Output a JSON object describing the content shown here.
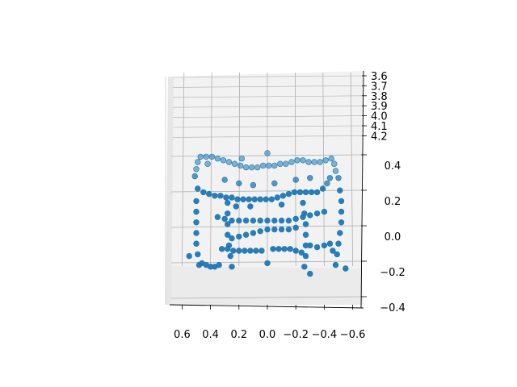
{
  "chart_data": {
    "type": "scatter",
    "projection": "3d",
    "title": "",
    "xlabel": "",
    "ylabel": "",
    "zlabel": "",
    "grid": true,
    "marker_color": "#1f77b4",
    "pane_color": "#f2f2f2",
    "grid_color": "#b0b0b0",
    "x_axis": {
      "ticks": [
        0.6,
        0.4,
        0.2,
        0.0,
        -0.2,
        -0.4,
        -0.6
      ],
      "tick_labels": [
        "0.6",
        "0.4",
        "0.2",
        "0.0",
        "−0.2",
        "−0.4",
        "−0.6"
      ]
    },
    "y_axis": {
      "ticks": [
        0.4,
        0.2,
        0.0,
        -0.2,
        -0.4
      ],
      "tick_labels": [
        "0.4",
        "0.2",
        "0.0",
        "−0.2",
        "−0.4"
      ]
    },
    "z_axis": {
      "ticks": [
        3.6,
        3.7,
        3.8,
        3.9,
        4.0,
        4.1,
        4.2
      ],
      "tick_labels": [
        "3.6",
        "3.7",
        "3.8",
        "3.9",
        "4.0",
        "4.1",
        "4.2"
      ]
    },
    "series": [
      {
        "points": [
          {
            "x": 0.47,
            "y": 0.48,
            "z": 4.15
          },
          {
            "x": 0.43,
            "y": 0.48,
            "z": 4.15
          },
          {
            "x": 0.39,
            "y": 0.48,
            "z": 4.15
          },
          {
            "x": 0.35,
            "y": 0.47,
            "z": 4.15
          },
          {
            "x": 0.31,
            "y": 0.46,
            "z": 4.15
          },
          {
            "x": 0.27,
            "y": 0.45,
            "z": 4.15
          },
          {
            "x": 0.23,
            "y": 0.44,
            "z": 4.15
          },
          {
            "x": 0.19,
            "y": 0.43,
            "z": 4.15
          },
          {
            "x": 0.15,
            "y": 0.42,
            "z": 4.15
          },
          {
            "x": 0.11,
            "y": 0.42,
            "z": 4.15
          },
          {
            "x": 0.07,
            "y": 0.42,
            "z": 4.15
          },
          {
            "x": 0.03,
            "y": 0.43,
            "z": 4.15
          },
          {
            "x": -0.01,
            "y": 0.43,
            "z": 4.15
          },
          {
            "x": -0.05,
            "y": 0.43,
            "z": 4.15
          },
          {
            "x": -0.09,
            "y": 0.44,
            "z": 4.15
          },
          {
            "x": -0.13,
            "y": 0.44,
            "z": 4.15
          },
          {
            "x": -0.17,
            "y": 0.45,
            "z": 4.15
          },
          {
            "x": -0.21,
            "y": 0.46,
            "z": 4.15
          },
          {
            "x": -0.25,
            "y": 0.46,
            "z": 4.15
          },
          {
            "x": -0.29,
            "y": 0.45,
            "z": 4.15
          },
          {
            "x": -0.33,
            "y": 0.45,
            "z": 4.15
          },
          {
            "x": -0.37,
            "y": 0.45,
            "z": 4.15
          },
          {
            "x": -0.41,
            "y": 0.46,
            "z": 4.15
          },
          {
            "x": -0.45,
            "y": 0.47,
            "z": 4.15
          },
          {
            "x": 0.49,
            "y": 0.45,
            "z": 4.15
          },
          {
            "x": 0.5,
            "y": 0.41,
            "z": 4.15
          },
          {
            "x": 0.51,
            "y": 0.37,
            "z": 4.15
          },
          {
            "x": -0.47,
            "y": 0.44,
            "z": 4.15
          },
          {
            "x": -0.48,
            "y": 0.4,
            "z": 4.15
          },
          {
            "x": -0.5,
            "y": 0.36,
            "z": 4.15
          },
          {
            "x": 0.42,
            "y": 0.44,
            "z": 4.15
          },
          {
            "x": 0.18,
            "y": 0.47,
            "z": 4.15
          },
          {
            "x": 0.0,
            "y": 0.5,
            "z": 4.15
          },
          {
            "x": 0.45,
            "y": 0.28,
            "z": 4.15
          },
          {
            "x": 0.41,
            "y": 0.27,
            "z": 4.15
          },
          {
            "x": 0.37,
            "y": 0.26,
            "z": 4.15
          },
          {
            "x": 0.33,
            "y": 0.26,
            "z": 4.15
          },
          {
            "x": 0.29,
            "y": 0.25,
            "z": 4.15
          },
          {
            "x": 0.25,
            "y": 0.25,
            "z": 4.15
          },
          {
            "x": 0.21,
            "y": 0.24,
            "z": 4.15
          },
          {
            "x": 0.17,
            "y": 0.24,
            "z": 4.15
          },
          {
            "x": 0.13,
            "y": 0.24,
            "z": 4.15
          },
          {
            "x": 0.09,
            "y": 0.24,
            "z": 4.15
          },
          {
            "x": 0.05,
            "y": 0.24,
            "z": 4.15
          },
          {
            "x": 0.01,
            "y": 0.24,
            "z": 4.15
          },
          {
            "x": -0.03,
            "y": 0.24,
            "z": 4.15
          },
          {
            "x": -0.07,
            "y": 0.25,
            "z": 4.15
          },
          {
            "x": -0.11,
            "y": 0.26,
            "z": 4.15
          },
          {
            "x": -0.15,
            "y": 0.27,
            "z": 4.15
          },
          {
            "x": -0.19,
            "y": 0.28,
            "z": 4.15
          },
          {
            "x": -0.23,
            "y": 0.28,
            "z": 4.15
          },
          {
            "x": -0.27,
            "y": 0.28,
            "z": 4.15
          },
          {
            "x": -0.31,
            "y": 0.28,
            "z": 4.15
          },
          {
            "x": -0.35,
            "y": 0.28,
            "z": 4.15
          },
          {
            "x": -0.39,
            "y": 0.3,
            "z": 4.15
          },
          {
            "x": -0.42,
            "y": 0.33,
            "z": 4.15
          },
          {
            "x": -0.44,
            "y": 0.36,
            "z": 4.15
          },
          {
            "x": 0.3,
            "y": 0.35,
            "z": 4.15
          },
          {
            "x": 0.2,
            "y": 0.33,
            "z": 4.15
          },
          {
            "x": 0.1,
            "y": 0.32,
            "z": 4.15
          },
          {
            "x": -0.05,
            "y": 0.33,
            "z": 4.15
          },
          {
            "x": -0.2,
            "y": 0.35,
            "z": 4.15
          },
          {
            "x": -0.3,
            "y": 0.36,
            "z": 4.15
          },
          {
            "x": 0.28,
            "y": 0.22,
            "z": 4.15
          },
          {
            "x": 0.22,
            "y": 0.2,
            "z": 4.15
          },
          {
            "x": 0.12,
            "y": 0.2,
            "z": 4.15
          },
          {
            "x": -0.1,
            "y": 0.21,
            "z": 4.15
          },
          {
            "x": -0.25,
            "y": 0.22,
            "z": 4.15
          },
          {
            "x": 0.49,
            "y": 0.3,
            "z": 4.15
          },
          {
            "x": 0.5,
            "y": 0.23,
            "z": 4.15
          },
          {
            "x": 0.5,
            "y": 0.17,
            "z": 4.15
          },
          {
            "x": 0.5,
            "y": 0.11,
            "z": 4.15
          },
          {
            "x": 0.5,
            "y": 0.05,
            "z": 4.15
          },
          {
            "x": 0.5,
            "y": -0.01,
            "z": 4.15
          },
          {
            "x": 0.49,
            "y": -0.07,
            "z": 4.15
          },
          {
            "x": 0.48,
            "y": -0.13,
            "z": 4.15
          },
          {
            "x": -0.51,
            "y": 0.29,
            "z": 4.15
          },
          {
            "x": -0.52,
            "y": 0.23,
            "z": 4.15
          },
          {
            "x": -0.52,
            "y": 0.17,
            "z": 4.15
          },
          {
            "x": -0.52,
            "y": 0.11,
            "z": 4.15
          },
          {
            "x": -0.51,
            "y": 0.05,
            "z": 4.15
          },
          {
            "x": -0.5,
            "y": -0.01,
            "z": 4.15
          },
          {
            "x": -0.49,
            "y": -0.07,
            "z": 4.15
          },
          {
            "x": -0.48,
            "y": -0.13,
            "z": 4.15
          },
          {
            "x": 0.28,
            "y": 0.16,
            "z": 4.15
          },
          {
            "x": 0.28,
            "y": 0.1,
            "z": 4.15
          },
          {
            "x": 0.28,
            "y": 0.04,
            "z": 4.15
          },
          {
            "x": 0.27,
            "y": -0.02,
            "z": 4.15
          },
          {
            "x": 0.26,
            "y": -0.08,
            "z": 4.15
          },
          {
            "x": 0.25,
            "y": -0.14,
            "z": 4.15
          },
          {
            "x": -0.26,
            "y": 0.16,
            "z": 4.15
          },
          {
            "x": -0.27,
            "y": 0.1,
            "z": 4.15
          },
          {
            "x": -0.27,
            "y": 0.04,
            "z": 4.15
          },
          {
            "x": -0.27,
            "y": -0.02,
            "z": 4.15
          },
          {
            "x": -0.27,
            "y": -0.08,
            "z": 4.15
          },
          {
            "x": -0.26,
            "y": -0.14,
            "z": 4.15
          },
          {
            "x": 0.35,
            "y": 0.14,
            "z": 4.15
          },
          {
            "x": 0.3,
            "y": 0.13,
            "z": 4.15
          },
          {
            "x": 0.25,
            "y": 0.12,
            "z": 4.15
          },
          {
            "x": 0.2,
            "y": 0.12,
            "z": 4.15
          },
          {
            "x": 0.15,
            "y": 0.12,
            "z": 4.15
          },
          {
            "x": 0.1,
            "y": 0.12,
            "z": 4.15
          },
          {
            "x": 0.05,
            "y": 0.12,
            "z": 4.15
          },
          {
            "x": 0.0,
            "y": 0.12,
            "z": 4.15
          },
          {
            "x": -0.05,
            "y": 0.12,
            "z": 4.15
          },
          {
            "x": -0.1,
            "y": 0.12,
            "z": 4.15
          },
          {
            "x": -0.15,
            "y": 0.12,
            "z": 4.15
          },
          {
            "x": -0.2,
            "y": 0.13,
            "z": 4.15
          },
          {
            "x": -0.25,
            "y": 0.14,
            "z": 4.15
          },
          {
            "x": -0.3,
            "y": 0.15,
            "z": 4.15
          },
          {
            "x": -0.35,
            "y": 0.16,
            "z": 4.15
          },
          {
            "x": -0.4,
            "y": 0.17,
            "z": 4.15
          },
          {
            "x": 0.25,
            "y": 0.02,
            "z": 4.15
          },
          {
            "x": 0.2,
            "y": 0.03,
            "z": 4.15
          },
          {
            "x": 0.15,
            "y": 0.04,
            "z": 4.15
          },
          {
            "x": 0.1,
            "y": 0.05,
            "z": 4.15
          },
          {
            "x": 0.05,
            "y": 0.06,
            "z": 4.15
          },
          {
            "x": 0.0,
            "y": 0.07,
            "z": 4.15
          },
          {
            "x": -0.05,
            "y": 0.07,
            "z": 4.15
          },
          {
            "x": -0.1,
            "y": 0.07,
            "z": 4.15
          },
          {
            "x": -0.15,
            "y": 0.07,
            "z": 4.15
          },
          {
            "x": -0.2,
            "y": 0.08,
            "z": 4.15
          },
          {
            "x": 0.32,
            "y": -0.04,
            "z": 4.15
          },
          {
            "x": 0.28,
            "y": -0.04,
            "z": 4.15
          },
          {
            "x": 0.24,
            "y": -0.05,
            "z": 4.15
          },
          {
            "x": 0.2,
            "y": -0.05,
            "z": 4.15
          },
          {
            "x": 0.16,
            "y": -0.05,
            "z": 4.15
          },
          {
            "x": 0.12,
            "y": -0.05,
            "z": 4.15
          },
          {
            "x": 0.08,
            "y": -0.05,
            "z": 4.15
          },
          {
            "x": 0.04,
            "y": -0.05,
            "z": 4.15
          },
          {
            "x": -0.04,
            "y": -0.04,
            "z": 4.15
          },
          {
            "x": -0.08,
            "y": -0.04,
            "z": 4.15
          },
          {
            "x": -0.12,
            "y": -0.04,
            "z": 4.15
          },
          {
            "x": -0.16,
            "y": -0.04,
            "z": 4.15
          },
          {
            "x": -0.2,
            "y": -0.05,
            "z": 4.15
          },
          {
            "x": -0.24,
            "y": -0.06,
            "z": 4.15
          },
          {
            "x": 0.46,
            "y": -0.12,
            "z": 4.15
          },
          {
            "x": 0.43,
            "y": -0.13,
            "z": 4.15
          },
          {
            "x": 0.4,
            "y": -0.14,
            "z": 4.15
          },
          {
            "x": 0.37,
            "y": -0.14,
            "z": 4.15
          },
          {
            "x": 0.34,
            "y": -0.13,
            "z": 4.15
          },
          {
            "x": -0.3,
            "y": -0.02,
            "z": 4.15
          },
          {
            "x": -0.35,
            "y": -0.03,
            "z": 4.15
          },
          {
            "x": -0.4,
            "y": -0.02,
            "z": 4.15
          },
          {
            "x": -0.44,
            "y": -0.01,
            "z": 4.15
          },
          {
            "x": -0.46,
            "y": -0.05,
            "z": 4.15
          },
          {
            "x": 0.0,
            "y": -0.12,
            "z": 4.15
          },
          {
            "x": -0.3,
            "y": -0.18,
            "z": 4.15
          },
          {
            "x": 0.55,
            "y": -0.08,
            "z": 4.15
          },
          {
            "x": -0.55,
            "y": -0.15,
            "z": 4.15
          }
        ]
      }
    ]
  }
}
